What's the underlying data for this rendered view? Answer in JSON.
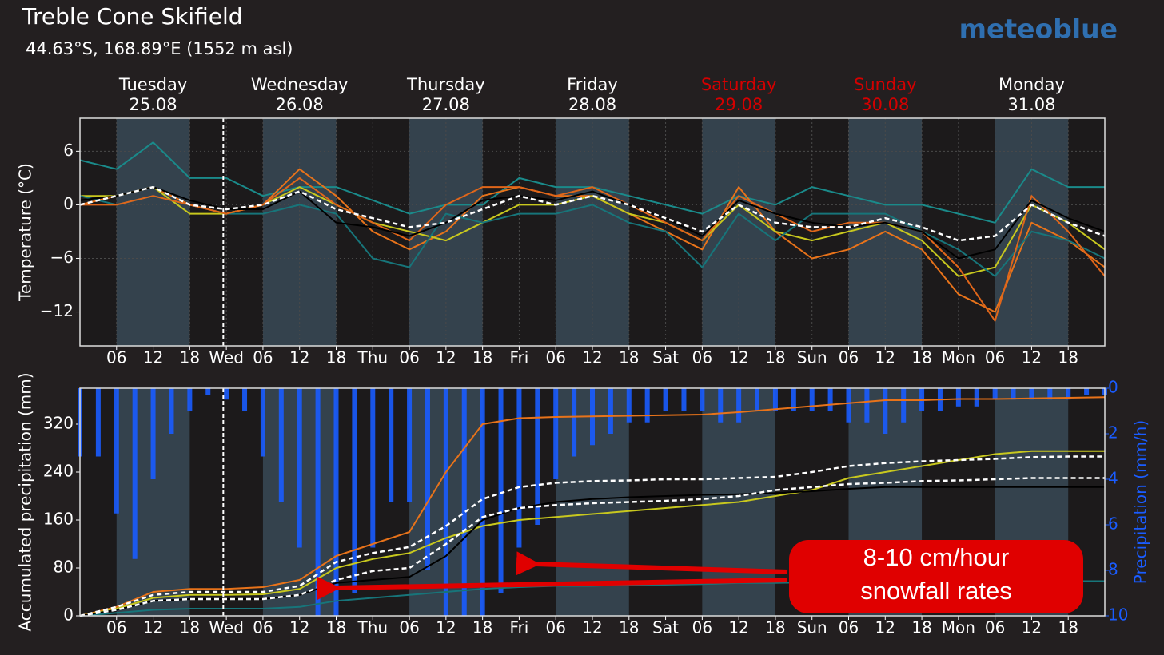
{
  "header": {
    "title": "Treble Cone Skifield",
    "subtitle": "44.63°S, 168.89°E (1552 m asl)",
    "logo": "meteoblue"
  },
  "chart_data": [
    {
      "type": "line",
      "ylabel": "Temperature (°C)",
      "days": [
        {
          "name": "Tuesday",
          "date": "25.08",
          "color": "#ffffff"
        },
        {
          "name": "Wednesday",
          "date": "26.08",
          "color": "#ffffff"
        },
        {
          "name": "Thursday",
          "date": "27.08",
          "color": "#ffffff"
        },
        {
          "name": "Friday",
          "date": "28.08",
          "color": "#ffffff"
        },
        {
          "name": "Saturday",
          "date": "29.08",
          "color": "#d40000"
        },
        {
          "name": "Sunday",
          "date": "30.08",
          "color": "#d40000"
        },
        {
          "name": "Monday",
          "date": "31.08",
          "color": "#ffffff"
        }
      ],
      "now_x": 23.5,
      "x": [
        0,
        6,
        12,
        18,
        24,
        30,
        36,
        42,
        48,
        54,
        60,
        66,
        72,
        78,
        84,
        90,
        96,
        102,
        108,
        114,
        120,
        126,
        132,
        138,
        144,
        150,
        156,
        162,
        168
      ],
      "xlim": [
        0,
        168
      ],
      "xticks": [
        {
          "value": 6,
          "label": "06"
        },
        12,
        18,
        {
          "value": 24,
          "label": "Wed"
        },
        {
          "value": 30,
          "label": "06"
        },
        {
          "value": 36,
          "label": "12"
        },
        {
          "value": 42,
          "label": "18"
        },
        {
          "value": 48,
          "label": "Thu"
        },
        {
          "value": 54,
          "label": "06"
        },
        {
          "value": 60,
          "label": "12"
        },
        {
          "value": 66,
          "label": "18"
        },
        {
          "value": 72,
          "label": "Fri"
        },
        {
          "value": 78,
          "label": "06"
        },
        {
          "value": 84,
          "label": "12"
        },
        {
          "value": 90,
          "label": "18"
        },
        {
          "value": 96,
          "label": "Sat"
        },
        {
          "value": 102,
          "label": "06"
        },
        {
          "value": 108,
          "label": "12"
        },
        {
          "value": 114,
          "label": "18"
        },
        {
          "value": 120,
          "label": "Sun"
        },
        {
          "value": 126,
          "label": "06"
        },
        {
          "value": 132,
          "label": "12"
        },
        {
          "value": 138,
          "label": "18"
        },
        {
          "value": 144,
          "label": "Mon"
        },
        {
          "value": 150,
          "label": "06"
        },
        {
          "value": 156,
          "label": "12"
        },
        {
          "value": 162,
          "label": "18"
        }
      ],
      "ylim": [
        -15.8,
        9.7
      ],
      "yticks": [
        6,
        0,
        {
          "value": -6,
          "label": "−6"
        },
        {
          "value": -12,
          "label": "−12"
        }
      ],
      "grid": true,
      "series": [
        {
          "color": "#1a8a8a",
          "values": [
            5,
            4,
            7,
            3,
            3,
            1,
            2,
            2,
            0.5,
            -1,
            0,
            0,
            3,
            2,
            2,
            1,
            0,
            -1,
            1,
            0,
            2,
            1,
            0,
            0,
            -1,
            -2,
            4,
            2,
            2
          ]
        },
        {
          "color": "#e8731a",
          "values": [
            0,
            1,
            2,
            0,
            -1,
            0,
            4,
            1,
            -3,
            -5,
            -3,
            1,
            2,
            1,
            1,
            -1,
            -3,
            -5,
            2,
            -3,
            -6,
            -5,
            -3,
            -5,
            -10,
            -12,
            -2,
            -4,
            -7
          ]
        },
        {
          "color": "#c8c81e",
          "values": [
            1,
            1,
            2,
            -1,
            -1,
            0,
            2,
            0,
            -2,
            -3,
            -4,
            -2,
            0,
            0,
            1,
            -1,
            -2,
            -4,
            0,
            -3,
            -4,
            -3,
            -2,
            -4,
            -8,
            -7,
            0,
            -2,
            -5
          ]
        },
        {
          "color": "#17757a",
          "values": [
            1,
            0,
            1,
            0,
            -1,
            -1,
            0,
            -1,
            -6,
            -7,
            -1,
            -2,
            -1,
            -1,
            0,
            -2,
            -3,
            -7,
            -1,
            -4,
            -1,
            -1,
            -1,
            -3,
            -5,
            -8,
            -3,
            -4,
            -6
          ]
        },
        {
          "color": "#e0661a",
          "values": [
            0,
            0,
            1,
            0,
            -1,
            0,
            3,
            0,
            -2,
            -4,
            0,
            2,
            2,
            1,
            2,
            0,
            -2,
            -4,
            1,
            -1,
            -3,
            -2,
            -2,
            -3,
            -7,
            -13,
            1,
            -3,
            -8
          ]
        },
        {
          "color": "#000000",
          "values": [
            0.5,
            1,
            2,
            0.5,
            -0.5,
            -0.5,
            1.5,
            -2,
            -2.5,
            -3.5,
            -2,
            0.5,
            1,
            0.5,
            1.5,
            0,
            -1.5,
            -3.5,
            0.5,
            -1,
            -2,
            -2.5,
            -2,
            -3,
            -6,
            -5,
            0.5,
            -1.5,
            -3
          ]
        },
        {
          "color": "#ffffff",
          "dashed": true,
          "values": [
            0,
            1,
            2,
            0,
            -0.5,
            0,
            1.5,
            -0.5,
            -1.5,
            -2.5,
            -2,
            -0.5,
            1,
            0,
            1,
            0,
            -1.5,
            -3,
            0,
            -2,
            -2.5,
            -2.5,
            -1.5,
            -2.5,
            -4,
            -3.5,
            0,
            -2,
            -3.5
          ]
        }
      ]
    },
    {
      "type": "line",
      "ylabel": "Accumulated precipitation (mm)",
      "y2label": "Precipitation (mm/h)",
      "y2color": "#1a5cff",
      "now_x": 23.5,
      "annotation": [
        "8-10 cm/hour",
        "snowfall rates"
      ],
      "x": [
        0,
        6,
        12,
        18,
        24,
        30,
        36,
        42,
        48,
        54,
        60,
        66,
        72,
        78,
        84,
        90,
        96,
        102,
        108,
        114,
        120,
        126,
        132,
        138,
        144,
        150,
        156,
        162,
        168
      ],
      "xlim": [
        0,
        168
      ],
      "xticks": [
        {
          "value": 6,
          "label": "06"
        },
        12,
        18,
        {
          "value": 24,
          "label": "Wed"
        },
        {
          "value": 30,
          "label": "06"
        },
        {
          "value": 36,
          "label": "12"
        },
        {
          "value": 42,
          "label": "18"
        },
        {
          "value": 48,
          "label": "Thu"
        },
        {
          "value": 54,
          "label": "06"
        },
        {
          "value": 60,
          "label": "12"
        },
        {
          "value": 66,
          "label": "18"
        },
        {
          "value": 72,
          "label": "Fri"
        },
        {
          "value": 78,
          "label": "06"
        },
        {
          "value": 84,
          "label": "12"
        },
        {
          "value": 90,
          "label": "18"
        },
        {
          "value": 96,
          "label": "Sat"
        },
        {
          "value": 102,
          "label": "06"
        },
        {
          "value": 108,
          "label": "12"
        },
        {
          "value": 114,
          "label": "18"
        },
        {
          "value": 120,
          "label": "Sun"
        },
        {
          "value": 126,
          "label": "06"
        },
        {
          "value": 132,
          "label": "12"
        },
        {
          "value": 138,
          "label": "18"
        },
        {
          "value": 144,
          "label": "Mon"
        },
        {
          "value": 150,
          "label": "06"
        },
        {
          "value": 156,
          "label": "12"
        },
        {
          "value": 162,
          "label": "18"
        }
      ],
      "ylim": [
        0,
        380
      ],
      "yticks": [
        0,
        80,
        160,
        240,
        320
      ],
      "y2lim": [
        10,
        0
      ],
      "y2ticks": [
        0,
        2,
        4,
        6,
        8,
        10
      ],
      "grid": false,
      "series": [
        {
          "type": "bar",
          "axis": "y2",
          "color": "#1a5cff",
          "x": [
            0,
            3,
            6,
            9,
            12,
            15,
            18,
            21,
            24,
            27,
            30,
            33,
            36,
            39,
            42,
            45,
            48,
            51,
            54,
            57,
            60,
            63,
            66,
            69,
            72,
            75,
            78,
            81,
            84,
            87,
            90,
            93,
            96,
            99,
            102,
            105,
            108,
            111,
            114,
            117,
            120,
            123,
            126,
            129,
            132,
            135,
            138,
            141,
            144,
            147,
            150,
            153,
            156,
            159,
            162,
            165,
            168
          ],
          "values": [
            3,
            3,
            5.5,
            7.5,
            4,
            2,
            1,
            0.3,
            0.5,
            1,
            3,
            5,
            7,
            10,
            10,
            9,
            7,
            5,
            5,
            8,
            10,
            10,
            10,
            9,
            7,
            6,
            4,
            3,
            2.5,
            2,
            1.5,
            1.5,
            1,
            1,
            1,
            1.5,
            1.5,
            1,
            1,
            1,
            1,
            1,
            1.5,
            1.5,
            2,
            1.5,
            1,
            1,
            0.8,
            0.8,
            0.5,
            0.5,
            0.5,
            0.5,
            0.5,
            0.3,
            0.3
          ]
        },
        {
          "color": "#e8731a",
          "values": [
            0,
            15,
            40,
            45,
            45,
            48,
            60,
            100,
            120,
            140,
            240,
            320,
            330,
            332,
            333,
            334,
            335,
            336,
            340,
            345,
            350,
            355,
            360,
            360,
            362,
            362,
            363,
            364,
            365
          ]
        },
        {
          "color": "#c8c81e",
          "values": [
            0,
            12,
            30,
            35,
            35,
            36,
            45,
            80,
            95,
            105,
            130,
            150,
            160,
            165,
            170,
            175,
            180,
            185,
            190,
            200,
            210,
            230,
            240,
            250,
            260,
            270,
            275,
            275,
            275
          ]
        },
        {
          "color": "#17757a",
          "values": [
            0,
            5,
            10,
            12,
            12,
            12,
            15,
            25,
            30,
            35,
            40,
            45,
            48,
            50,
            50,
            52,
            52,
            53,
            55,
            55,
            56,
            56,
            57,
            57,
            58,
            58,
            58,
            58,
            58
          ]
        },
        {
          "color": "#000000",
          "values": [
            0,
            10,
            25,
            28,
            28,
            28,
            35,
            55,
            60,
            65,
            100,
            160,
            180,
            190,
            195,
            198,
            200,
            202,
            203,
            205,
            208,
            212,
            215,
            215,
            215,
            215,
            215,
            215,
            215
          ]
        },
        {
          "color": "#ffffff",
          "dashed": true,
          "values": [
            0,
            15,
            35,
            40,
            40,
            40,
            50,
            90,
            105,
            115,
            150,
            195,
            215,
            222,
            225,
            226,
            228,
            228,
            230,
            232,
            240,
            250,
            255,
            258,
            260,
            262,
            265,
            266,
            266
          ]
        },
        {
          "color": "#ffffff",
          "dashed": true,
          "values": [
            0,
            10,
            25,
            28,
            28,
            28,
            35,
            60,
            75,
            80,
            120,
            165,
            180,
            185,
            188,
            190,
            192,
            195,
            200,
            210,
            215,
            220,
            222,
            225,
            226,
            228,
            230,
            230,
            230
          ]
        }
      ]
    }
  ]
}
